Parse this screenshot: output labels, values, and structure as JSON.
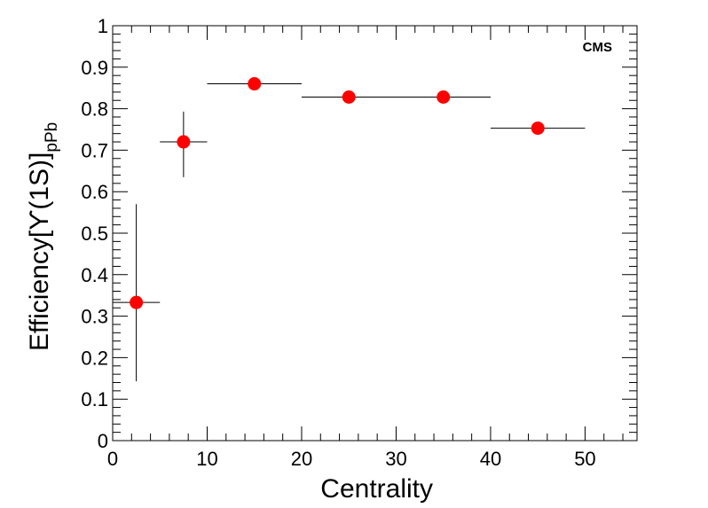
{
  "chart_data": {
    "type": "scatter",
    "title": "",
    "xlabel": "Centrality",
    "ylabel": {
      "main": "Efficiency[",
      "symbol": "ϒ",
      "paren": "(1S)]",
      "subscript": "pPb"
    },
    "tag": "CMS",
    "xlim": [
      0,
      55.5
    ],
    "ylim": [
      0,
      1
    ],
    "x_ticks": [
      "0",
      "10",
      "20",
      "30",
      "40",
      "50"
    ],
    "y_ticks": [
      "0",
      "0.1",
      "0.2",
      "0.3",
      "0.4",
      "0.5",
      "0.6",
      "0.7",
      "0.8",
      "0.9",
      "1"
    ],
    "grid": false,
    "legend": "none",
    "series": [
      {
        "color": "#ff0000",
        "points": [
          {
            "x": 2.5,
            "y": 0.333,
            "x_low": 0,
            "x_high": 5,
            "y_err_low": 0.19,
            "y_err_high": 0.237
          },
          {
            "x": 7.5,
            "y": 0.72,
            "x_low": 5,
            "x_high": 10,
            "y_err_low": 0.085,
            "y_err_high": 0.073
          },
          {
            "x": 15,
            "y": 0.86,
            "x_low": 10,
            "x_high": 20,
            "y_err_low": 0,
            "y_err_high": 0
          },
          {
            "x": 25,
            "y": 0.828,
            "x_low": 20,
            "x_high": 30,
            "y_err_low": 0,
            "y_err_high": 0
          },
          {
            "x": 35,
            "y": 0.828,
            "x_low": 30,
            "x_high": 40,
            "y_err_low": 0,
            "y_err_high": 0
          },
          {
            "x": 45,
            "y": 0.753,
            "x_low": 40,
            "x_high": 50,
            "y_err_low": 0,
            "y_err_high": 0
          }
        ]
      }
    ]
  }
}
